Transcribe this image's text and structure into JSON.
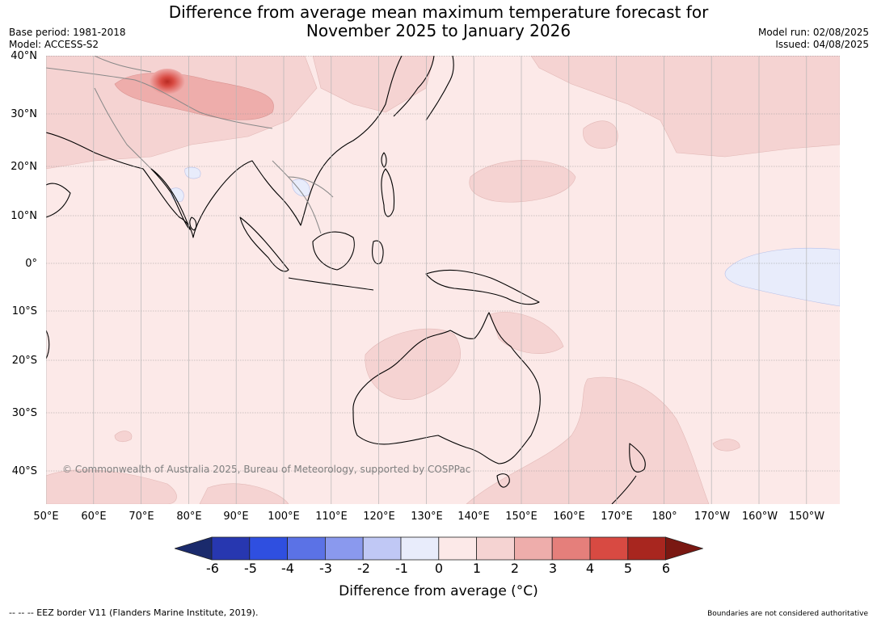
{
  "title": {
    "line1": "Difference from average mean maximum temperature forecast for",
    "line2": "November 2025 to January 2026"
  },
  "meta_left": {
    "base_period": "Base period: 1981-2018",
    "model": "Model: ACCESS-S2"
  },
  "meta_right": {
    "model_run": "Model run: 02/08/2025",
    "issued": "Issued: 04/08/2025"
  },
  "copyright": "© Commonwealth of Australia 2025, Bureau of Meteorology, supported by COSPPac",
  "lat_labels": [
    "40°N",
    "30°N",
    "20°N",
    "10°N",
    "0°",
    "10°S",
    "20°S",
    "30°S",
    "40°S"
  ],
  "lon_labels": [
    "50°E",
    "60°E",
    "70°E",
    "80°E",
    "90°E",
    "100°E",
    "110°E",
    "120°E",
    "130°E",
    "140°E",
    "150°E",
    "160°E",
    "170°E",
    "180°",
    "170°W",
    "160°W",
    "150°W"
  ],
  "colorbar": {
    "ticks": [
      "-6",
      "-5",
      "-4",
      "-3",
      "-2",
      "-1",
      "0",
      "1",
      "2",
      "3",
      "4",
      "5",
      "6"
    ],
    "colors": [
      "#1a2a6c",
      "#2737b0",
      "#2f4fe0",
      "#5b72e6",
      "#8a99ee",
      "#c0c8f5",
      "#e8ecfb",
      "#fce9e8",
      "#f5d3d2",
      "#eeadab",
      "#e57f7b",
      "#d84a42",
      "#a8261f",
      "#7a1812"
    ],
    "label": "Difference from average (°C)"
  },
  "footer_left": "--  --  -- EEZ border V11 (Flanders Marine Institute, 2019).",
  "footer_right": "Boundaries are not considered authoritative"
}
